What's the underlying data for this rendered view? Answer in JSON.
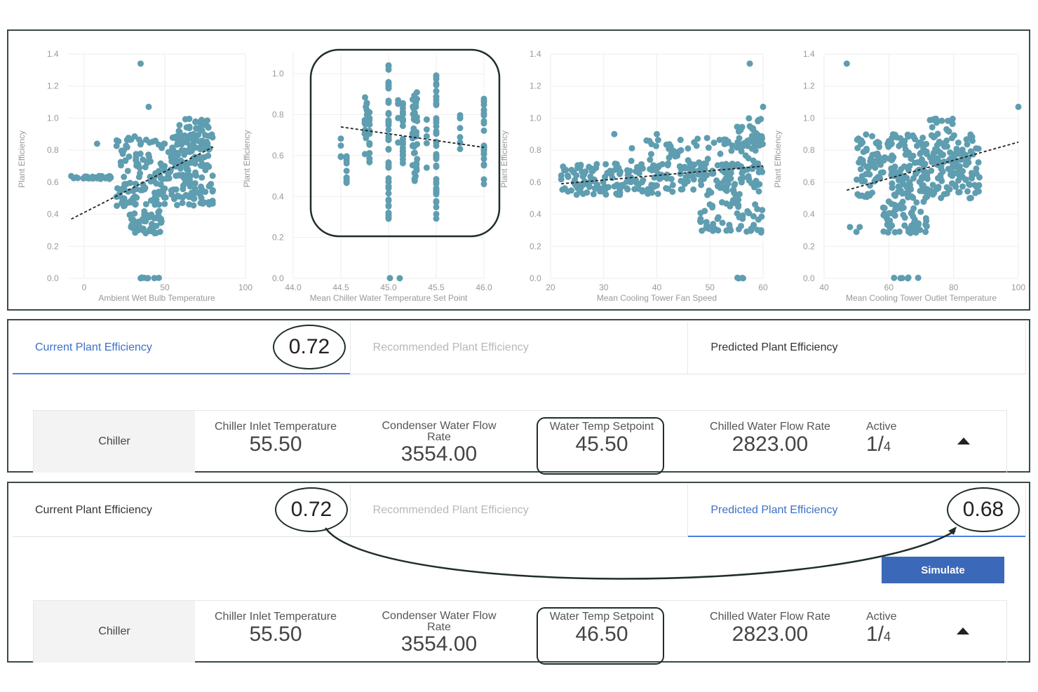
{
  "chart_data": [
    {
      "type": "scatter",
      "xlabel": "Ambient Wet Bulb Temperature",
      "ylabel": "Plant Efficiency",
      "xlim": [
        -10,
        100
      ],
      "ylim": [
        0,
        1.4
      ],
      "xticks": [
        "0",
        "50",
        "100"
      ],
      "xtick_values": [
        0,
        50,
        100
      ],
      "yticks": [
        "0.0",
        "0.2",
        "0.4",
        "0.6",
        "0.8",
        "1.0",
        "1.2",
        "1.4"
      ],
      "ytick_values": [
        0,
        0.2,
        0.4,
        0.6,
        0.8,
        1.0,
        1.2,
        1.4
      ],
      "trend": [
        [
          -8,
          0.37
        ],
        [
          80,
          0.82
        ]
      ],
      "clusters": [
        {
          "x": [
            -8,
            18
          ],
          "y": [
            0.62,
            0.64
          ],
          "n": 40
        },
        {
          "x": [
            20,
            80
          ],
          "y": [
            0.45,
            0.9
          ],
          "n": 260
        },
        {
          "x": [
            28,
            48
          ],
          "y": [
            0.28,
            0.42
          ],
          "n": 50
        },
        {
          "x": [
            58,
            78
          ],
          "y": [
            0.82,
            1.0
          ],
          "n": 40
        },
        {
          "x": [
            33,
            48
          ],
          "y": [
            0,
            0.005
          ],
          "n": 8
        }
      ],
      "outliers": [
        [
          35,
          1.34
        ],
        [
          40,
          1.07
        ],
        [
          8,
          0.84
        ]
      ]
    },
    {
      "type": "scatter",
      "xlabel": "Mean Chiller Water Temperature Set Point",
      "ylabel": "Plant Efficiency",
      "xlim": [
        44,
        46
      ],
      "ylim": [
        0,
        1.1
      ],
      "xticks": [
        "44.0",
        "44.5",
        "45.0",
        "45.5",
        "46.0"
      ],
      "xtick_values": [
        44,
        44.5,
        45,
        45.5,
        46
      ],
      "yticks": [
        "0.0",
        "0.2",
        "0.4",
        "0.6",
        "0.8",
        "1.0"
      ],
      "ytick_values": [
        0,
        0.2,
        0.4,
        0.6,
        0.8,
        1.0
      ],
      "trend": [
        [
          44.5,
          0.74
        ],
        [
          46,
          0.64
        ]
      ],
      "clusters": [
        {
          "x": [
            44.5,
            44.5
          ],
          "y": [
            0.57,
            0.69
          ],
          "n": 4
        },
        {
          "x": [
            44.56,
            44.56
          ],
          "y": [
            0.46,
            0.66
          ],
          "n": 10
        },
        {
          "x": [
            44.75,
            44.78
          ],
          "y": [
            0.6,
            0.91
          ],
          "n": 20
        },
        {
          "x": [
            44.8,
            44.8
          ],
          "y": [
            0.56,
            0.82
          ],
          "n": 15
        },
        {
          "x": [
            45.0,
            45.0
          ],
          "y": [
            0.28,
            1.07
          ],
          "n": 50
        },
        {
          "x": [
            45.1,
            45.1
          ],
          "y": [
            0.6,
            0.96
          ],
          "n": 4
        },
        {
          "x": [
            45.15,
            45.15
          ],
          "y": [
            0.55,
            0.86
          ],
          "n": 25
        },
        {
          "x": [
            45.25,
            45.3
          ],
          "y": [
            0.47,
            0.92
          ],
          "n": 50
        },
        {
          "x": [
            45.4,
            45.4
          ],
          "y": [
            0.54,
            0.8
          ],
          "n": 6
        },
        {
          "x": [
            45.5,
            45.5
          ],
          "y": [
            0.28,
            1.0
          ],
          "n": 45
        },
        {
          "x": [
            45.75,
            45.75
          ],
          "y": [
            0.6,
            0.83
          ],
          "n": 8
        },
        {
          "x": [
            46.0,
            46.0
          ],
          "y": [
            0.46,
            0.88
          ],
          "n": 25
        },
        {
          "x": [
            45.0,
            45.5
          ],
          "y": [
            0,
            0.002
          ],
          "n": 2
        }
      ],
      "outliers": []
    },
    {
      "type": "scatter",
      "xlabel": "Mean Cooling Tower Fan Speed",
      "ylabel": "Plant Efficiency",
      "xlim": [
        20,
        60
      ],
      "ylim": [
        0,
        1.4
      ],
      "xticks": [
        "20",
        "30",
        "40",
        "50",
        "60"
      ],
      "xtick_values": [
        20,
        30,
        40,
        50,
        60
      ],
      "yticks": [
        "0.0",
        "0.2",
        "0.4",
        "0.6",
        "0.8",
        "1.0",
        "1.2",
        "1.4"
      ],
      "ytick_values": [
        0,
        0.2,
        0.4,
        0.6,
        0.8,
        1.0,
        1.2,
        1.4
      ],
      "trend": [
        [
          22,
          0.59
        ],
        [
          60,
          0.7
        ]
      ],
      "clusters": [
        {
          "x": [
            22,
            60
          ],
          "y": [
            0.52,
            0.72
          ],
          "n": 260
        },
        {
          "x": [
            35,
            60
          ],
          "y": [
            0.7,
            0.88
          ],
          "n": 60
        },
        {
          "x": [
            48,
            60
          ],
          "y": [
            0.28,
            0.5
          ],
          "n": 60
        },
        {
          "x": [
            55,
            60
          ],
          "y": [
            0.8,
            1.0
          ],
          "n": 40
        },
        {
          "x": [
            55,
            59
          ],
          "y": [
            0,
            0.005
          ],
          "n": 4
        }
      ],
      "outliers": [
        [
          57.5,
          1.34
        ],
        [
          60,
          1.07
        ],
        [
          32,
          0.9
        ],
        [
          40,
          0.9
        ]
      ]
    },
    {
      "type": "scatter",
      "xlabel": "Mean Cooling Tower Outlet Temperature",
      "ylabel": "Plant Efficiency",
      "xlim": [
        40,
        100
      ],
      "ylim": [
        0,
        1.4
      ],
      "xticks": [
        "40",
        "60",
        "80",
        "100"
      ],
      "xtick_values": [
        40,
        60,
        80,
        100
      ],
      "yticks": [
        "0.0",
        "0.2",
        "0.4",
        "0.6",
        "0.8",
        "1.0",
        "1.2",
        "1.4"
      ],
      "ytick_values": [
        0,
        0.2,
        0.4,
        0.6,
        0.8,
        1.0,
        1.2,
        1.4
      ],
      "trend": [
        [
          47,
          0.55
        ],
        [
          100,
          0.85
        ]
      ],
      "clusters": [
        {
          "x": [
            50,
            88
          ],
          "y": [
            0.5,
            0.9
          ],
          "n": 300
        },
        {
          "x": [
            58,
            72
          ],
          "y": [
            0.28,
            0.48
          ],
          "n": 60
        },
        {
          "x": [
            72,
            80
          ],
          "y": [
            0.9,
            1.0
          ],
          "n": 15
        },
        {
          "x": [
            61,
            71
          ],
          "y": [
            0,
            0.005
          ],
          "n": 6
        }
      ],
      "outliers": [
        [
          47,
          1.34
        ],
        [
          100,
          1.07
        ],
        [
          48,
          0.32
        ],
        [
          50,
          0.29
        ],
        [
          51,
          0.32
        ]
      ]
    }
  ],
  "colors": {
    "point": "#5f9db0",
    "accent": "#3d70c8",
    "button": "#3b68b8",
    "annotation": "#1f2e28"
  },
  "panel_current": {
    "tabs": [
      "Current Plant Efficiency",
      "Recommended Plant Efficiency",
      "Predicted Plant Efficiency"
    ],
    "current_value": "0.72",
    "row": {
      "label": "Chiller",
      "cols": [
        {
          "label": "Chiller Inlet Temperature",
          "value": "55.50"
        },
        {
          "label": "Condenser Water Flow Rate",
          "value": "3554.00"
        },
        {
          "label": "Water Temp Setpoint",
          "value": "45.50"
        },
        {
          "label": "Chilled Water Flow Rate",
          "value": "2823.00"
        }
      ],
      "active_label": "Active",
      "active_value": "1/",
      "active_total": "4"
    }
  },
  "panel_predicted": {
    "tabs": [
      "Current Plant Efficiency",
      "Recommended Plant Efficiency",
      "Predicted Plant Efficiency"
    ],
    "current_value": "0.72",
    "predicted_value": "0.68",
    "simulate": "Simulate",
    "row": {
      "label": "Chiller",
      "cols": [
        {
          "label": "Chiller Inlet Temperature",
          "value": "55.50"
        },
        {
          "label": "Condenser Water Flow Rate",
          "value": "3554.00"
        },
        {
          "label": "Water Temp Setpoint",
          "value": "46.50"
        },
        {
          "label": "Chilled Water Flow Rate",
          "value": "2823.00"
        }
      ],
      "active_label": "Active",
      "active_value": "1/",
      "active_total": "4"
    }
  }
}
